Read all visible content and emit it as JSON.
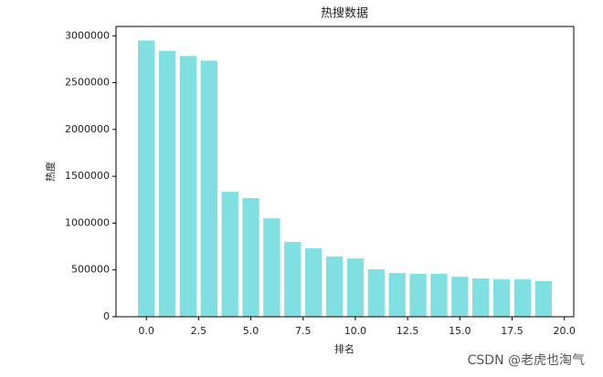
{
  "chart_data": {
    "type": "bar",
    "title": "热搜数据",
    "x_label": "排名",
    "y_label": "热度",
    "x": [
      0,
      1,
      2,
      3,
      4,
      5,
      6,
      7,
      8,
      9,
      10,
      11,
      12,
      13,
      14,
      15,
      16,
      17,
      18,
      19
    ],
    "values": [
      2950000,
      2840000,
      2785000,
      2735000,
      1334000,
      1266000,
      1052000,
      799000,
      730000,
      643000,
      623000,
      506000,
      467000,
      458000,
      458000,
      428000,
      409000,
      399000,
      399000,
      380000
    ],
    "color": "#80dfe0",
    "bar_width": 0.8,
    "xlim": [
      -1.45,
      20.45
    ],
    "xticks": [
      {
        "value": 0,
        "label": "0.0"
      },
      {
        "value": 2.5,
        "label": "2.5"
      },
      {
        "value": 5,
        "label": "5.0"
      },
      {
        "value": 7.5,
        "label": "7.5"
      },
      {
        "value": 10,
        "label": "10.0"
      },
      {
        "value": 12.5,
        "label": "12.5"
      },
      {
        "value": 15,
        "label": "15.0"
      },
      {
        "value": 17.5,
        "label": "17.5"
      },
      {
        "value": 20,
        "label": "20.0"
      }
    ],
    "ylim": [
      0,
      3100000
    ],
    "yticks": [
      0,
      500000,
      1000000,
      1500000,
      2000000,
      2500000,
      3000000
    ],
    "grid": false
  },
  "watermark": "CSDN @老虎也淘气"
}
